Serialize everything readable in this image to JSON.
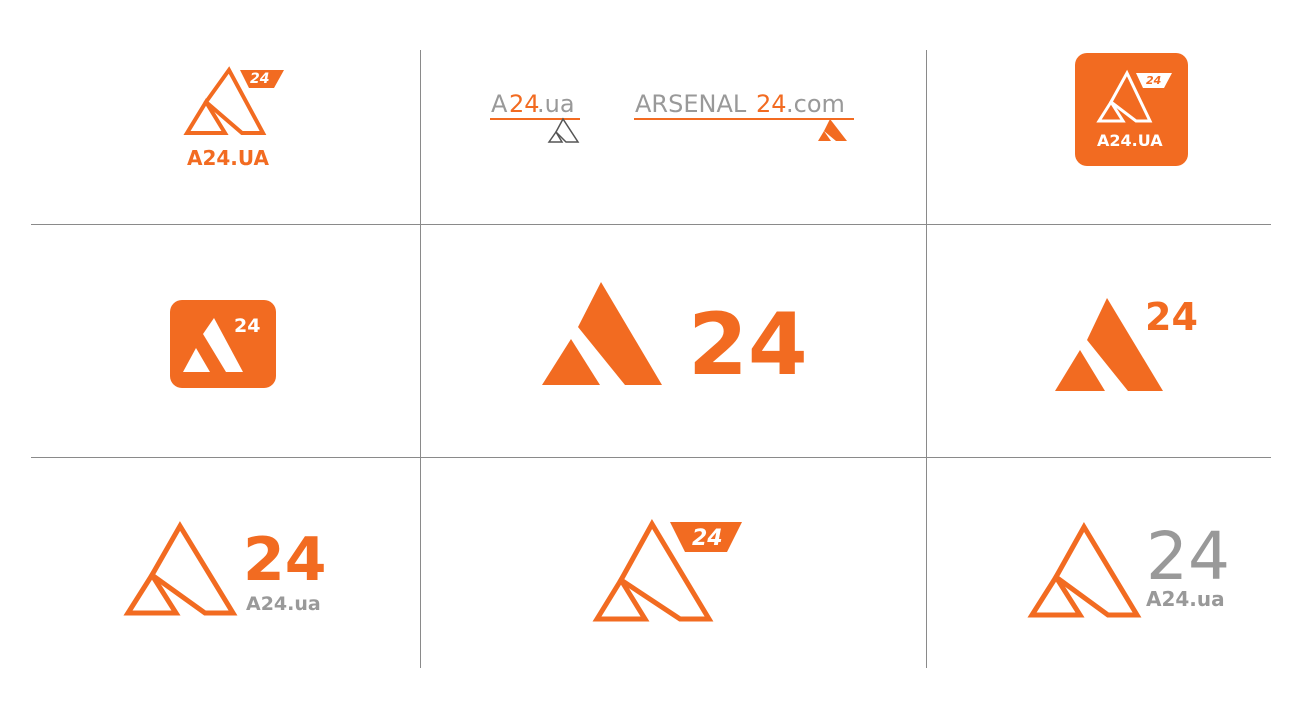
{
  "colors": {
    "brand_orange": "#F26B21",
    "grey": "#999999",
    "grid": "#8A8A8A",
    "white": "#FFFFFF"
  },
  "logos": {
    "outline_with_tab": {
      "badge": "24",
      "caption": "A24.UA"
    },
    "domain_short": {
      "prefix": "A",
      "number": "24",
      "suffix": ".ua"
    },
    "domain_long": {
      "prefix": "ARSENAL",
      "number": "24",
      "suffix": ".com"
    },
    "app_icon_outline": {
      "badge": "24",
      "caption": "A24.UA"
    },
    "app_icon_solid": {
      "badge": "24"
    },
    "solid_large": {
      "number": "24"
    },
    "solid_superscript": {
      "number": "24"
    },
    "outline_stacked": {
      "number": "24",
      "domain": "A24.ua"
    },
    "outline_flag": {
      "badge": "24"
    },
    "outline_grey": {
      "number": "24",
      "domain": "A24.ua"
    }
  }
}
